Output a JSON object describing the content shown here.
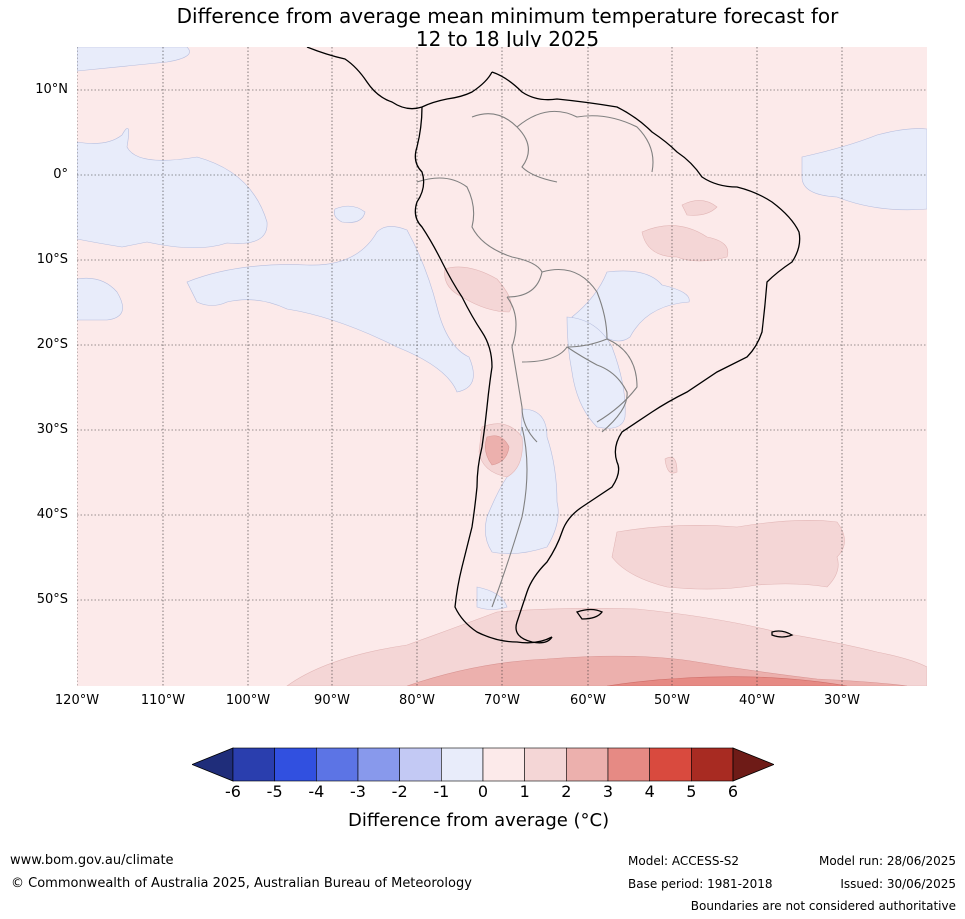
{
  "title": {
    "line1": "Difference from average mean minimum temperature forecast for",
    "line2": "12 to 18 July 2025"
  },
  "map": {
    "lat_labels": [
      "10°N",
      "0°",
      "10°S",
      "20°S",
      "30°S",
      "40°S",
      "50°S"
    ],
    "lon_labels": [
      "120°W",
      "110°W",
      "100°W",
      "90°W",
      "80°W",
      "70°W",
      "60°W",
      "50°W",
      "40°W",
      "30°W"
    ],
    "colors": {
      "background_anomaly": "#fceaea",
      "cool_anomaly": "#e8ecfa",
      "warm_1_2": "#f4d6d6",
      "warm_2_3": "#ecb0ad",
      "warm_3_4": "#e68a84"
    }
  },
  "colorbar": {
    "ticks": [
      "-6",
      "-5",
      "-4",
      "-3",
      "-2",
      "-1",
      "0",
      "1",
      "2",
      "3",
      "4",
      "5",
      "6"
    ],
    "colors": [
      "#1f2d7a",
      "#2a3eae",
      "#3150e0",
      "#5c74e5",
      "#8899ec",
      "#c3c9f4",
      "#e8ecfa",
      "#fceaea",
      "#f4d6d6",
      "#ecb0ad",
      "#e68a84",
      "#d94a3e",
      "#a82b22",
      "#6e1b17"
    ],
    "label": "Difference from average (°C)"
  },
  "footer": {
    "website": "www.bom.gov.au/climate",
    "copyright": "© Commonwealth of Australia 2025, Australian Bureau of Meteorology",
    "model": "Model: ACCESS-S2",
    "base_period": "Base period: 1981-2018",
    "model_run": "Model run: 28/06/2025",
    "issued": "Issued: 30/06/2025",
    "boundaries_note": "Boundaries are not considered authoritative"
  }
}
